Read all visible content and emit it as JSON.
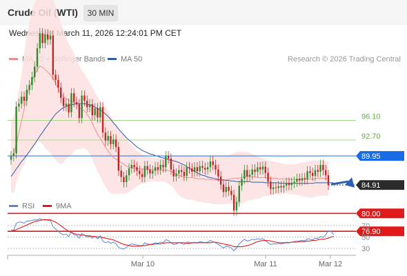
{
  "header": {
    "title": "Crude Oil (WTI)",
    "timeframe": "30 MIN",
    "datetime": "Wednesday, March 11, 2026 12:24:01 PM CET"
  },
  "legend": [
    {
      "label": "MA 20 + Bollinger Bands",
      "color": "#f08c8c"
    },
    {
      "label": "MA 50",
      "color": "#2e5aa8"
    }
  ],
  "credit": "Research © 2026 Trading Central",
  "rsi_legend": [
    {
      "label": "RSI",
      "color": "#5b84d6"
    },
    {
      "label": "9MA",
      "color": "#e01a1a"
    }
  ],
  "colors": {
    "bull": "#2e8b2e",
    "bear": "#c82323",
    "resistance": "#a8d98a",
    "current_price": "#2b2b2b",
    "pivot": "#1a6be6",
    "support": "#e01a1a"
  },
  "chart_data": [
    {
      "type": "candlestick",
      "title": "",
      "x_ticks": [
        "Mar 10",
        "Mar 11",
        "Mar 12"
      ],
      "y_range": [
        74,
        120
      ],
      "levels": [
        {
          "value": 96.1,
          "label": "96.10",
          "kind": "resistance"
        },
        {
          "value": 92.7,
          "label": "92.70",
          "kind": "resistance"
        },
        {
          "value": 89.95,
          "label": "89.95",
          "kind": "pivot"
        },
        {
          "value": 84.91,
          "label": "84.91",
          "kind": "current"
        },
        {
          "value": 80.0,
          "label": "80.00",
          "kind": "support"
        },
        {
          "value": 76.9,
          "label": "76.90",
          "kind": "support"
        }
      ],
      "close": [
        89.9,
        90.4,
        98.5,
        99.0,
        100.2,
        99.5,
        101.4,
        102.2,
        103.6,
        105.4,
        108.6,
        111.2,
        109.5,
        111.0,
        110.1,
        110.8,
        104.0,
        103.1,
        101.8,
        100.0,
        98.6,
        99.0,
        97.5,
        100.8,
        99.3,
        98.9,
        96.5,
        100.4,
        99.5,
        98.4,
        98.9,
        97.0,
        98.2,
        96.6,
        98.4,
        94.0,
        92.6,
        93.4,
        92.0,
        92.8,
        91.5,
        87.4,
        86.3,
        85.4,
        86.6,
        87.8,
        88.4,
        88.0,
        87.4,
        86.8,
        86.3,
        88.2,
        87.6,
        86.9,
        87.4,
        88.0,
        87.6,
        88.4,
        88.0,
        89.9,
        89.5,
        87.6,
        86.4,
        86.9,
        87.5,
        87.2,
        86.5,
        88.0,
        87.8,
        87.2,
        88.0,
        87.3,
        88.2,
        87.9,
        87.6,
        88.0,
        89.0,
        88.4,
        87.6,
        86.4,
        85.0,
        83.7,
        84.6,
        83.9,
        83.2,
        80.5,
        82.0,
        84.8,
        86.0,
        87.5,
        86.4,
        86.7,
        87.6,
        87.2,
        88.0,
        87.6,
        88.1,
        87.0,
        85.5,
        84.2,
        84.5,
        84.4,
        84.7,
        84.5,
        84.8,
        85.3,
        84.9,
        85.3,
        85.5,
        86.0,
        85.7,
        86.1,
        85.9,
        87.3,
        87.0,
        86.5,
        87.5,
        87.2,
        88.4,
        87.5,
        86.6,
        84.91
      ],
      "ma20": [
        89.7,
        90.2,
        92.0,
        94.0,
        96.0,
        98.0,
        100.4,
        101.8,
        103.0,
        104.0,
        104.9,
        105.5,
        105.3,
        104.9,
        104.5,
        104.0,
        103.4,
        102.5,
        101.6,
        100.7,
        100.2,
        99.9,
        99.6,
        99.4,
        99.2,
        98.9,
        98.4,
        98.0,
        97.7,
        97.2,
        96.5,
        95.6,
        94.6,
        93.7,
        93.0,
        92.2,
        91.5,
        90.8,
        90.2,
        89.7,
        89.4,
        89.1,
        88.8,
        88.5,
        88.2,
        88.0,
        87.9,
        87.8,
        87.8,
        87.7,
        87.7,
        87.6,
        87.6,
        87.6,
        87.6,
        87.5,
        87.5,
        87.5,
        87.5,
        87.5,
        87.4,
        87.3,
        87.1,
        86.8,
        86.6,
        86.4,
        86.3,
        86.2,
        86.2,
        86.2,
        86.1,
        86.0,
        86.0,
        86.0,
        85.9,
        85.9,
        85.9,
        85.8,
        85.8,
        85.8,
        85.8,
        85.8,
        85.8,
        85.9,
        86.0,
        86.1,
        86.1,
        86.1,
        86.2,
        86.3,
        86.4,
        86.4,
        86.3,
        86.3,
        86.2,
        86.2,
        86.2,
        86.2,
        86.1,
        86.1,
        86.1,
        86.1,
        86.0,
        86.0,
        86.0,
        86.0,
        85.9,
        85.9,
        85.9,
        85.9,
        85.9,
        85.9,
        85.9,
        85.9,
        85.9,
        86.0,
        86.0,
        86.1,
        86.1,
        86.1,
        86.1,
        86.0
      ],
      "ma50": [
        86.4,
        87.0,
        87.7,
        88.3,
        89.0,
        89.5,
        90.1,
        90.7,
        91.4,
        92.0,
        92.7,
        93.4,
        94.0,
        94.7,
        95.3,
        96.0,
        96.6,
        97.2,
        97.6,
        98.0,
        98.3,
        98.5,
        98.7,
        98.8,
        98.9,
        99.0,
        99.0,
        99.0,
        99.0,
        98.9,
        98.8,
        98.7,
        98.4,
        98.2,
        97.9,
        97.6,
        97.2,
        96.8,
        96.3,
        95.7,
        95.2,
        94.6,
        94.1,
        93.6,
        93.1,
        92.7,
        92.3,
        91.9,
        91.5,
        91.2,
        90.9,
        90.7,
        90.5,
        90.3,
        90.2,
        90.0,
        89.9,
        89.7,
        89.6,
        89.5,
        89.3,
        89.2,
        89.1,
        89.0,
        88.8,
        88.6,
        88.4,
        88.1,
        87.8,
        87.5,
        87.3,
        87.0,
        86.8,
        86.6,
        86.5,
        86.3,
        86.2,
        86.1,
        86.0,
        85.9,
        85.8,
        85.8,
        85.7,
        85.7,
        85.6,
        85.6,
        85.5,
        85.5,
        85.5,
        85.5,
        85.5,
        85.5,
        85.4,
        85.4,
        85.4,
        85.4,
        85.4,
        85.3,
        85.3,
        85.3,
        85.3,
        85.3,
        85.3,
        85.2,
        85.2,
        85.2,
        85.2,
        85.2,
        85.2,
        85.2,
        85.2,
        85.2,
        85.2,
        85.2,
        85.2,
        85.2,
        85.3,
        85.3,
        85.3,
        85.3,
        85.3,
        85.3,
        85.3,
        85.3
      ],
      "bb_upper": [
        95.7,
        96.9,
        98.6,
        101.3,
        104.2,
        107.7,
        110.9,
        113.0,
        114.9,
        116.4,
        117.5,
        118.5,
        118.6,
        118.5,
        118.1,
        117.6,
        116.9,
        115.8,
        114.3,
        112.9,
        111.6,
        110.4,
        109.4,
        108.6,
        107.7,
        106.7,
        105.7,
        104.8,
        104.2,
        103.4,
        102.6,
        101.8,
        101.0,
        100.2,
        99.5,
        99.0,
        98.4,
        97.7,
        96.9,
        96.1,
        95.4,
        94.8,
        94.2,
        93.6,
        93.0,
        92.3,
        91.8,
        91.3,
        90.9,
        90.5,
        90.2,
        90.0,
        89.8,
        89.7,
        89.6,
        89.5,
        89.5,
        89.5,
        89.5,
        89.6,
        89.7,
        89.8,
        89.9,
        90.0,
        90.0,
        90.0,
        90.0,
        90.0,
        90.0,
        90.0,
        90.0,
        90.0,
        90.0,
        90.0,
        90.0,
        90.0,
        90.0,
        90.0,
        90.0,
        90.0,
        90.0,
        90.0,
        90.0,
        90.1,
        90.3,
        90.5,
        90.6,
        90.7,
        90.7,
        90.7,
        90.6,
        90.5,
        90.3,
        90.1,
        89.9,
        89.7,
        89.5,
        89.3,
        89.2,
        89.1,
        89.0,
        88.9,
        88.8,
        88.7,
        88.6,
        88.5,
        88.5,
        88.5,
        88.5,
        88.6,
        88.7,
        88.8,
        88.9,
        89.0,
        89.1,
        89.2,
        89.2,
        89.2,
        89.2,
        89.1,
        89.1,
        89.0
      ],
      "bb_lower": [
        83.7,
        83.5,
        85.4,
        86.7,
        87.8,
        88.3,
        89.9,
        90.6,
        91.1,
        91.6,
        92.3,
        92.5,
        92.0,
        91.3,
        90.9,
        90.4,
        89.9,
        89.2,
        88.9,
        88.5,
        88.8,
        89.4,
        89.8,
        90.2,
        90.7,
        91.1,
        91.1,
        91.2,
        91.2,
        91.0,
        90.4,
        89.4,
        88.2,
        87.2,
        86.5,
        85.4,
        84.6,
        83.9,
        83.5,
        83.3,
        83.4,
        83.4,
        83.4,
        83.4,
        83.4,
        83.7,
        84.0,
        84.3,
        84.7,
        84.9,
        85.2,
        85.2,
        85.4,
        85.5,
        85.6,
        85.5,
        85.5,
        85.5,
        85.5,
        85.4,
        85.1,
        84.8,
        84.3,
        83.6,
        83.2,
        82.8,
        82.6,
        82.4,
        82.4,
        82.4,
        82.2,
        82.0,
        82.0,
        82.0,
        81.8,
        81.8,
        81.8,
        81.6,
        81.6,
        81.6,
        81.6,
        81.6,
        81.6,
        81.7,
        81.7,
        81.7,
        81.6,
        81.5,
        81.7,
        81.9,
        82.2,
        82.3,
        82.3,
        82.5,
        82.5,
        82.7,
        82.9,
        83.1,
        83.0,
        83.1,
        83.2,
        83.3,
        83.2,
        83.3,
        83.4,
        83.5,
        83.3,
        83.3,
        83.3,
        83.2,
        83.1,
        83.0,
        82.9,
        82.8,
        82.7,
        82.8,
        82.8,
        83.0,
        83.0,
        83.1,
        83.1,
        83.0
      ]
    },
    {
      "type": "line",
      "title": "RSI",
      "y_range": [
        20,
        85
      ],
      "y_ticks": [
        70,
        50,
        30
      ],
      "series": [
        {
          "name": "RSI",
          "values": [
            62,
            62,
            74,
            76,
            76,
            74,
            78,
            78,
            79,
            80,
            80,
            82,
            80,
            81,
            79,
            79,
            68,
            64,
            60,
            56,
            54,
            55,
            51,
            59,
            54,
            53,
            48,
            56,
            53,
            50,
            51,
            48,
            51,
            47,
            52,
            43,
            40,
            42,
            39,
            41,
            38,
            32,
            30,
            29,
            32,
            36,
            38,
            37,
            36,
            35,
            34,
            40,
            38,
            37,
            38,
            40,
            39,
            41,
            40,
            45,
            44,
            40,
            37,
            38,
            40,
            39,
            37,
            41,
            41,
            39,
            41,
            39,
            42,
            41,
            40,
            41,
            44,
            42,
            40,
            37,
            34,
            31,
            34,
            33,
            31,
            26,
            31,
            38,
            42,
            46,
            43,
            44,
            46,
            45,
            47,
            46,
            47,
            44,
            40,
            37,
            38,
            38,
            39,
            38,
            39,
            41,
            40,
            41,
            42,
            43,
            43,
            44,
            43,
            47,
            46,
            45,
            48,
            47,
            51,
            49,
            54,
            61,
            60,
            54
          ]
        },
        {
          "name": "9MA",
          "values": [
            60,
            61,
            63,
            65,
            67,
            69,
            71,
            73,
            75,
            77,
            78,
            79,
            80,
            80,
            80,
            80,
            78,
            76,
            73,
            70,
            66,
            63,
            60,
            58,
            56,
            55,
            54,
            53,
            53,
            52,
            52,
            51,
            51,
            50,
            50,
            49,
            48,
            47,
            46,
            45,
            43,
            41,
            39,
            37,
            36,
            35,
            34,
            34,
            34,
            34,
            35,
            35,
            36,
            37,
            37,
            38,
            38,
            38,
            39,
            40,
            40,
            40,
            40,
            40,
            40,
            40,
            40,
            39,
            39,
            40,
            40,
            40,
            40,
            40,
            40,
            40,
            40,
            41,
            41,
            40,
            39,
            38,
            37,
            36,
            35,
            33,
            33,
            33,
            33,
            34,
            35,
            36,
            38,
            40,
            42,
            43,
            44,
            44,
            44,
            43,
            42,
            41,
            40,
            40,
            40,
            40,
            40,
            41,
            41,
            41,
            42,
            42,
            42,
            43,
            43,
            44,
            44,
            45,
            46,
            46,
            47,
            48,
            50,
            51
          ]
        }
      ]
    }
  ]
}
